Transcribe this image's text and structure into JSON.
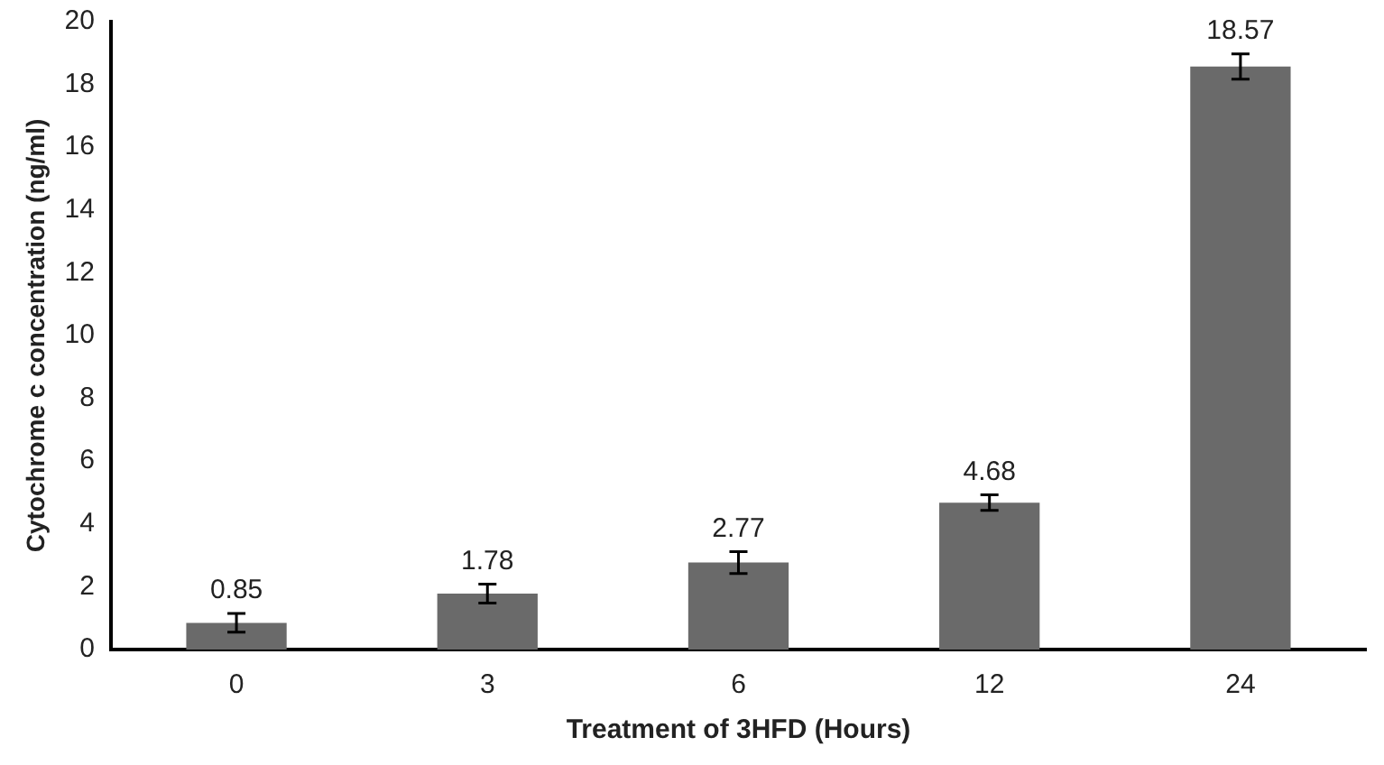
{
  "chart_data": {
    "type": "bar",
    "xlabel": "Treatment of 3HFD (Hours)",
    "ylabel": "Cytochrome c concentration (ng/ml)",
    "categories": [
      "0",
      "3",
      "6",
      "12",
      "24"
    ],
    "values": [
      0.85,
      1.78,
      2.77,
      4.68,
      18.57
    ],
    "errors": [
      0.3,
      0.3,
      0.35,
      0.25,
      0.4
    ],
    "color": "#6a6a6a",
    "ylim": [
      0,
      20
    ],
    "yticks": [
      0,
      2,
      4,
      6,
      8,
      10,
      12,
      14,
      16,
      18,
      20
    ],
    "grid": false,
    "legend": false,
    "data_labels": true
  }
}
